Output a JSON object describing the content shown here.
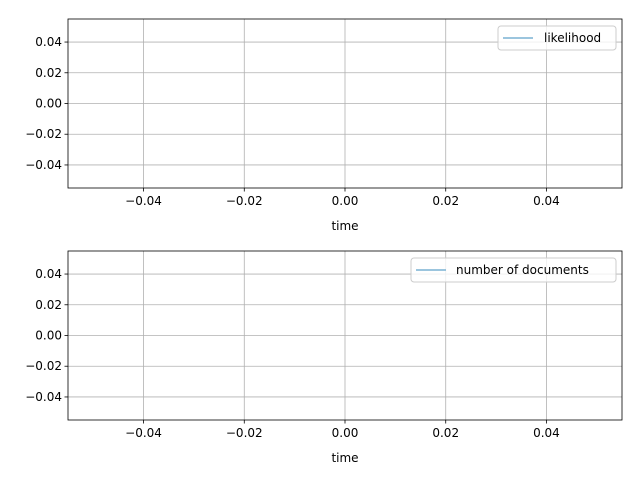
{
  "chart_data": [
    {
      "type": "line",
      "title": "",
      "xlabel": "time",
      "ylabel": "",
      "xlim": [
        -0.055,
        0.055
      ],
      "ylim": [
        -0.055,
        0.055
      ],
      "xticks": [
        -0.04,
        -0.02,
        0.0,
        0.02,
        0.04
      ],
      "yticks": [
        -0.04,
        -0.02,
        0.0,
        0.02,
        0.04
      ],
      "xtick_labels": [
        "−0.04",
        "−0.02",
        "0.00",
        "0.02",
        "0.04"
      ],
      "ytick_labels": [
        "−0.04",
        "−0.02",
        "0.00",
        "0.02",
        "0.04"
      ],
      "grid": true,
      "legend_position": "top-right",
      "series": [
        {
          "name": "likelihood",
          "color": "#7ab2d4",
          "x": [],
          "y": []
        }
      ]
    },
    {
      "type": "line",
      "title": "",
      "xlabel": "time",
      "ylabel": "",
      "xlim": [
        -0.055,
        0.055
      ],
      "ylim": [
        -0.055,
        0.055
      ],
      "xticks": [
        -0.04,
        -0.02,
        0.0,
        0.02,
        0.04
      ],
      "yticks": [
        -0.04,
        -0.02,
        0.0,
        0.02,
        0.04
      ],
      "xtick_labels": [
        "−0.04",
        "−0.02",
        "0.00",
        "0.02",
        "0.04"
      ],
      "ytick_labels": [
        "−0.04",
        "−0.02",
        "0.00",
        "0.02",
        "0.04"
      ],
      "grid": true,
      "legend_position": "top-right",
      "series": [
        {
          "name": "number of documents",
          "color": "#7ab2d4",
          "x": [],
          "y": []
        }
      ]
    }
  ]
}
